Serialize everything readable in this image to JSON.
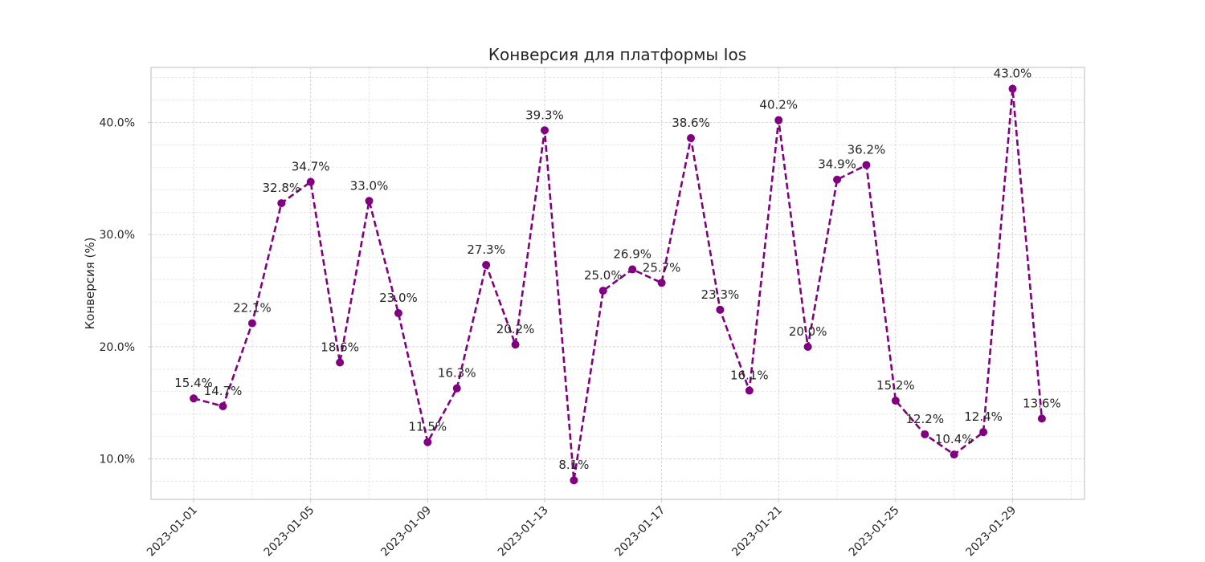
{
  "chart_data": {
    "type": "line",
    "title": "Конверсия для платформы Ios",
    "xlabel": "",
    "ylabel": "Конверсия (%)",
    "x": [
      "2023-01-01",
      "2023-01-02",
      "2023-01-03",
      "2023-01-04",
      "2023-01-05",
      "2023-01-06",
      "2023-01-07",
      "2023-01-08",
      "2023-01-09",
      "2023-01-10",
      "2023-01-11",
      "2023-01-12",
      "2023-01-13",
      "2023-01-14",
      "2023-01-15",
      "2023-01-16",
      "2023-01-17",
      "2023-01-18",
      "2023-01-19",
      "2023-01-20",
      "2023-01-21",
      "2023-01-22",
      "2023-01-23",
      "2023-01-24",
      "2023-01-25",
      "2023-01-26",
      "2023-01-27",
      "2023-01-28",
      "2023-01-29",
      "2023-01-30"
    ],
    "values": [
      15.4,
      14.7,
      22.1,
      32.8,
      34.7,
      18.6,
      33.0,
      23.0,
      11.5,
      16.3,
      27.3,
      20.2,
      39.3,
      8.1,
      25.0,
      26.9,
      25.7,
      38.6,
      23.3,
      16.1,
      40.2,
      20.0,
      34.9,
      36.2,
      15.2,
      12.2,
      10.4,
      12.4,
      43.0,
      13.6
    ],
    "data_labels": [
      "15.4%",
      "14.7%",
      "22.1%",
      "32.8%",
      "34.7%",
      "18.6%",
      "33.0%",
      "23.0%",
      "11.5%",
      "16.3%",
      "27.3%",
      "20.2%",
      "39.3%",
      "8.1%",
      "25.0%",
      "26.9%",
      "25.7%",
      "38.6%",
      "23.3%",
      "16.1%",
      "40.2%",
      "20.0%",
      "34.9%",
      "36.2%",
      "15.2%",
      "12.2%",
      "10.4%",
      "12.4%",
      "43.0%",
      "13.6%"
    ],
    "x_ticks": [
      "2023-01-01",
      "2023-01-05",
      "2023-01-09",
      "2023-01-13",
      "2023-01-17",
      "2023-01-21",
      "2023-01-25",
      "2023-01-29"
    ],
    "y_ticks": [
      10,
      20,
      30,
      40
    ],
    "y_tick_labels": [
      "10.0%",
      "20.0%",
      "30.0%",
      "40.0%"
    ],
    "ylim": [
      6.4,
      44.9
    ],
    "xlim": [
      "2022-12-30T13:00",
      "2023-01-31T11:00"
    ],
    "grid": true,
    "minor_grid": true,
    "line_style": "dashed",
    "marker": "circle",
    "line_color": "#800080"
  }
}
